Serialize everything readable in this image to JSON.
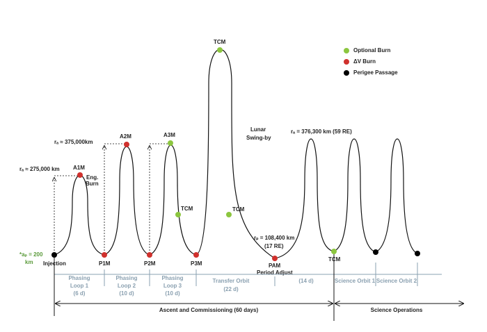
{
  "legend": [
    {
      "label": "Optional Burn"
    },
    {
      "label": "ΔV Burn"
    },
    {
      "label": "Perigee Passage"
    }
  ],
  "annotations": {
    "ra_loop1": "rₐ ≈ 275,000 km",
    "ra_loop2": "rₐ ≈ 375,000km",
    "ra_science": "rₐ = 376,300 km (59 RE)",
    "rp_transfer": "rₚ = 108,400 km",
    "rp_transfer_re": "(17 RE)",
    "ap_line1": "*aₚ = 200",
    "ap_line2": "km",
    "lunar_line1": "Lunar",
    "lunar_line2": "Swing-by"
  },
  "maneuvers": {
    "injection": "Injection",
    "a1m": "A1M",
    "eng_burn": "Eng.",
    "eng_burn2": "Burn",
    "a2m": "A2M",
    "a3m": "A3M",
    "tcm_top": "TCM",
    "tcm_loop3": "TCM",
    "tcm_transfer": "TCM",
    "tcm_science": "TCM",
    "p1m": "P1M",
    "p2m": "P2M",
    "p3m": "P3M",
    "pam": "PAM",
    "pam2": "Period Adjust"
  },
  "phases": [
    {
      "name": [
        "Phasing",
        "Loop 1"
      ],
      "duration": "(6 d)"
    },
    {
      "name": [
        "Phasing",
        "Loop 2"
      ],
      "duration": "(10 d)"
    },
    {
      "name": [
        "Phasing",
        "Loop 3"
      ],
      "duration": "(10 d)"
    },
    {
      "name": [
        "Transfer Orbit"
      ],
      "duration": "(22 d)"
    },
    {
      "duration": "(14 d)"
    },
    {
      "name": [
        "Science Orbit 1"
      ]
    },
    {
      "name": [
        "Science Orbit 2"
      ]
    }
  ],
  "periods": {
    "ascent": "Ascent and Commissioning (60 days)",
    "science": "Science Operations"
  }
}
